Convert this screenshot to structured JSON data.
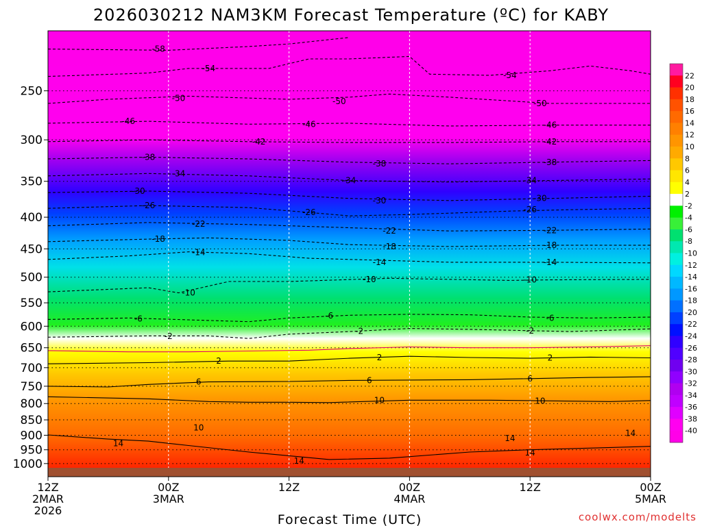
{
  "chart_data": {
    "type": "heatmap",
    "title": "2026030212 NAM3KM Forecast Temperature (ºC) for KABY",
    "xlabel": "Forecast Time (UTC)",
    "ylabel": "",
    "credit": "coolwx.com/modelts",
    "x_range_hours": [
      0,
      60
    ],
    "y_range_hpa": [
      1050,
      200
    ],
    "y_ticks": [
      250,
      300,
      350,
      400,
      450,
      500,
      550,
      600,
      650,
      700,
      750,
      800,
      850,
      900,
      950,
      1000
    ],
    "x_ticks": [
      {
        "hour": 0,
        "line1": "12Z",
        "line2": "2MAR",
        "line3": "2026"
      },
      {
        "hour": 12,
        "line1": "00Z",
        "line2": "3MAR",
        "line3": ""
      },
      {
        "hour": 24,
        "line1": "12Z",
        "line2": "",
        "line3": ""
      },
      {
        "hour": 36,
        "line1": "00Z",
        "line2": "4MAR",
        "line3": ""
      },
      {
        "hour": 48,
        "line1": "12Z",
        "line2": "",
        "line3": ""
      },
      {
        "hour": 60,
        "line1": "00Z",
        "line2": "5MAR",
        "line3": ""
      }
    ],
    "colorbar_levels": [
      "22",
      "20",
      "18",
      "16",
      "14",
      "12",
      "10",
      "8",
      "6",
      "4",
      "2",
      "-2",
      "-4",
      "-6",
      "-8",
      "-10",
      "-12",
      "-14",
      "-16",
      "-18",
      "-20",
      "-22",
      "-24",
      "-26",
      "-28",
      "-30",
      "-32",
      "-34",
      "-36",
      "-38",
      "-40"
    ],
    "colorbar_colors": [
      "#ff1aa0",
      "#ff0020",
      "#ff3000",
      "#ff5200",
      "#ff6a00",
      "#ff8000",
      "#ff9500",
      "#ffaa00",
      "#ffc800",
      "#ffe600",
      "#ffff00",
      "#ffffff",
      "#00f000",
      "#38f038",
      "#00e070",
      "#00e8b0",
      "#00f0e0",
      "#00d8ff",
      "#00b8ff",
      "#0098ff",
      "#0070ff",
      "#0040ff",
      "#0010ff",
      "#3000ff",
      "#5000ff",
      "#7000f0",
      "#9000ff",
      "#b000f0",
      "#c000ff",
      "#e000ff",
      "#ff00f0",
      "#ff00e8"
    ],
    "series": [
      {
        "name": "-58",
        "values": [
          [
            0,
            214
          ],
          [
            12,
            215
          ],
          [
            20,
            212
          ],
          [
            24,
            210
          ],
          [
            30,
            205
          ]
        ]
      },
      {
        "name": "-54",
        "values": [
          [
            0,
            237
          ],
          [
            10,
            234
          ],
          [
            14,
            230
          ],
          [
            22,
            230
          ],
          [
            26,
            222
          ],
          [
            30,
            222
          ],
          [
            36,
            220
          ],
          [
            38,
            235
          ],
          [
            44,
            236
          ],
          [
            50,
            232
          ],
          [
            54,
            228
          ],
          [
            58,
            232
          ],
          [
            60,
            235
          ]
        ]
      },
      {
        "name": "-50",
        "values": [
          [
            0,
            262
          ],
          [
            6,
            258
          ],
          [
            14,
            255
          ],
          [
            24,
            258
          ],
          [
            30,
            256
          ],
          [
            34,
            253
          ],
          [
            40,
            256
          ],
          [
            50,
            262
          ],
          [
            60,
            262
          ]
        ]
      },
      {
        "name": "-46",
        "values": [
          [
            0,
            282
          ],
          [
            10,
            280
          ],
          [
            20,
            283
          ],
          [
            30,
            282
          ],
          [
            40,
            285
          ],
          [
            50,
            284
          ],
          [
            60,
            284
          ]
        ]
      },
      {
        "name": "-42",
        "values": [
          [
            0,
            302
          ],
          [
            10,
            300
          ],
          [
            20,
            302
          ],
          [
            30,
            303
          ],
          [
            40,
            303
          ],
          [
            50,
            302
          ],
          [
            60,
            302
          ]
        ]
      },
      {
        "name": "-38",
        "values": [
          [
            0,
            322
          ],
          [
            10,
            320
          ],
          [
            20,
            322
          ],
          [
            30,
            326
          ],
          [
            40,
            328
          ],
          [
            50,
            326
          ],
          [
            60,
            324
          ]
        ]
      },
      {
        "name": "-34",
        "values": [
          [
            0,
            343
          ],
          [
            10,
            340
          ],
          [
            20,
            343
          ],
          [
            30,
            349
          ],
          [
            40,
            351
          ],
          [
            50,
            349
          ],
          [
            60,
            347
          ]
        ]
      },
      {
        "name": "-30",
        "values": [
          [
            0,
            365
          ],
          [
            10,
            363
          ],
          [
            20,
            366
          ],
          [
            30,
            373
          ],
          [
            40,
            376
          ],
          [
            50,
            373
          ],
          [
            60,
            370
          ]
        ]
      },
      {
        "name": "-26",
        "values": [
          [
            0,
            387
          ],
          [
            10,
            383
          ],
          [
            20,
            386
          ],
          [
            26,
            393
          ],
          [
            30,
            398
          ],
          [
            36,
            396
          ],
          [
            46,
            391
          ],
          [
            52,
            389
          ],
          [
            60,
            387
          ]
        ]
      },
      {
        "name": "-22",
        "values": [
          [
            0,
            413
          ],
          [
            10,
            408
          ],
          [
            20,
            411
          ],
          [
            30,
            416
          ],
          [
            40,
            421
          ],
          [
            50,
            420
          ],
          [
            60,
            418
          ]
        ]
      },
      {
        "name": "-18",
        "values": [
          [
            0,
            438
          ],
          [
            10,
            434
          ],
          [
            16,
            432
          ],
          [
            24,
            436
          ],
          [
            30,
            443
          ],
          [
            40,
            446
          ],
          [
            50,
            444
          ],
          [
            60,
            444
          ]
        ]
      },
      {
        "name": "-14",
        "values": [
          [
            0,
            468
          ],
          [
            8,
            462
          ],
          [
            14,
            455
          ],
          [
            20,
            458
          ],
          [
            26,
            466
          ],
          [
            34,
            470
          ],
          [
            40,
            473
          ],
          [
            50,
            473
          ],
          [
            60,
            474
          ]
        ]
      },
      {
        "name": "-10",
        "values": [
          [
            0,
            528
          ],
          [
            10,
            520
          ],
          [
            13,
            530
          ],
          [
            18,
            508
          ],
          [
            24,
            508
          ],
          [
            34,
            502
          ],
          [
            40,
            504
          ],
          [
            46,
            506
          ],
          [
            50,
            505
          ],
          [
            60,
            504
          ]
        ]
      },
      {
        "name": "-6",
        "values": [
          [
            0,
            585
          ],
          [
            8,
            582
          ],
          [
            14,
            586
          ],
          [
            20,
            590
          ],
          [
            24,
            582
          ],
          [
            30,
            576
          ],
          [
            36,
            574
          ],
          [
            42,
            575
          ],
          [
            48,
            580
          ],
          [
            54,
            582
          ],
          [
            60,
            580
          ]
        ]
      },
      {
        "name": "-2",
        "values": [
          [
            0,
            625
          ],
          [
            10,
            622
          ],
          [
            16,
            622
          ],
          [
            20,
            628
          ],
          [
            24,
            618
          ],
          [
            30,
            612
          ],
          [
            36,
            605
          ],
          [
            42,
            607
          ],
          [
            48,
            610
          ],
          [
            52,
            612
          ],
          [
            60,
            606
          ]
        ]
      },
      {
        "name": "0",
        "values": [
          [
            0,
            657
          ],
          [
            8,
            660
          ],
          [
            14,
            660
          ],
          [
            20,
            658
          ],
          [
            26,
            656
          ],
          [
            30,
            652
          ],
          [
            36,
            648
          ],
          [
            42,
            650
          ],
          [
            48,
            650
          ],
          [
            54,
            648
          ],
          [
            60,
            645
          ]
        ]
      },
      {
        "name": "2",
        "values": [
          [
            0,
            690
          ],
          [
            10,
            687
          ],
          [
            18,
            683
          ],
          [
            24,
            683
          ],
          [
            30,
            676
          ],
          [
            36,
            671
          ],
          [
            42,
            674
          ],
          [
            48,
            676
          ],
          [
            54,
            673
          ],
          [
            60,
            675
          ]
        ]
      },
      {
        "name": "6",
        "values": [
          [
            0,
            750
          ],
          [
            6,
            752
          ],
          [
            10,
            745
          ],
          [
            16,
            738
          ],
          [
            24,
            737
          ],
          [
            30,
            734
          ],
          [
            36,
            733
          ],
          [
            42,
            732
          ],
          [
            48,
            729
          ],
          [
            54,
            726
          ],
          [
            60,
            724
          ]
        ]
      },
      {
        "name": "10",
        "values": [
          [
            0,
            780
          ],
          [
            10,
            786
          ],
          [
            16,
            794
          ],
          [
            20,
            796
          ],
          [
            24,
            796
          ],
          [
            28,
            797
          ],
          [
            36,
            790
          ],
          [
            44,
            790
          ],
          [
            50,
            792
          ],
          [
            56,
            794
          ],
          [
            60,
            791
          ]
        ]
      },
      {
        "name": "14",
        "values": [
          [
            0,
            899
          ],
          [
            6,
            913
          ],
          [
            10,
            920
          ],
          [
            14,
            935
          ],
          [
            20,
            958
          ],
          [
            28,
            985
          ],
          [
            34,
            980
          ],
          [
            42,
            958
          ],
          [
            48,
            950
          ],
          [
            56,
            942
          ],
          [
            60,
            938
          ]
        ]
      }
    ],
    "contour_labels": [
      {
        "text": "-58",
        "hour": 11,
        "hpa": 214
      },
      {
        "text": "-54",
        "hour": 16,
        "hpa": 230
      },
      {
        "text": "-54",
        "hour": 46,
        "hpa": 236
      },
      {
        "text": "-50",
        "hour": 13,
        "hpa": 257
      },
      {
        "text": "-50",
        "hour": 29,
        "hpa": 260
      },
      {
        "text": "-50",
        "hour": 49,
        "hpa": 262
      },
      {
        "text": "-46",
        "hour": 8,
        "hpa": 280
      },
      {
        "text": "-46",
        "hour": 26,
        "hpa": 283
      },
      {
        "text": "-46",
        "hour": 50,
        "hpa": 284
      },
      {
        "text": "-42",
        "hour": 21,
        "hpa": 302
      },
      {
        "text": "-42",
        "hour": 50,
        "hpa": 302
      },
      {
        "text": "-38",
        "hour": 10,
        "hpa": 320
      },
      {
        "text": "-38",
        "hour": 33,
        "hpa": 328
      },
      {
        "text": "-38",
        "hour": 50,
        "hpa": 326
      },
      {
        "text": "-34",
        "hour": 13,
        "hpa": 340
      },
      {
        "text": "-34",
        "hour": 30,
        "hpa": 349
      },
      {
        "text": "-34",
        "hour": 48,
        "hpa": 349
      },
      {
        "text": "-30",
        "hour": 9,
        "hpa": 363
      },
      {
        "text": "-30",
        "hour": 33,
        "hpa": 376
      },
      {
        "text": "-30",
        "hour": 49,
        "hpa": 373
      },
      {
        "text": "-26",
        "hour": 10,
        "hpa": 383
      },
      {
        "text": "-26",
        "hour": 26,
        "hpa": 393
      },
      {
        "text": "-26",
        "hour": 48,
        "hpa": 389
      },
      {
        "text": "-22",
        "hour": 15,
        "hpa": 410
      },
      {
        "text": "-22",
        "hour": 34,
        "hpa": 421
      },
      {
        "text": "-22",
        "hour": 50,
        "hpa": 420
      },
      {
        "text": "-18",
        "hour": 11,
        "hpa": 434
      },
      {
        "text": "-18",
        "hour": 34,
        "hpa": 446
      },
      {
        "text": "-18",
        "hour": 50,
        "hpa": 444
      },
      {
        "text": "-14",
        "hour": 15,
        "hpa": 456
      },
      {
        "text": "-14",
        "hour": 33,
        "hpa": 473
      },
      {
        "text": "-14",
        "hour": 50,
        "hpa": 473
      },
      {
        "text": "-10",
        "hour": 14,
        "hpa": 530
      },
      {
        "text": "-10",
        "hour": 32,
        "hpa": 504
      },
      {
        "text": "-10",
        "hour": 48,
        "hpa": 505
      },
      {
        "text": "-6",
        "hour": 9,
        "hpa": 584
      },
      {
        "text": "-6",
        "hour": 28,
        "hpa": 577
      },
      {
        "text": "-6",
        "hour": 50,
        "hpa": 582
      },
      {
        "text": "-2",
        "hour": 12,
        "hpa": 623
      },
      {
        "text": "-2",
        "hour": 31,
        "hpa": 611
      },
      {
        "text": "-2",
        "hour": 48,
        "hpa": 610
      },
      {
        "text": "2",
        "hour": 17,
        "hpa": 683
      },
      {
        "text": "2",
        "hour": 33,
        "hpa": 674
      },
      {
        "text": "2",
        "hour": 50,
        "hpa": 675
      },
      {
        "text": "6",
        "hour": 15,
        "hpa": 738
      },
      {
        "text": "6",
        "hour": 32,
        "hpa": 734
      },
      {
        "text": "6",
        "hour": 48,
        "hpa": 729
      },
      {
        "text": "10",
        "hour": 15,
        "hpa": 875
      },
      {
        "text": "10",
        "hour": 33,
        "hpa": 790
      },
      {
        "text": "10",
        "hour": 49,
        "hpa": 792
      },
      {
        "text": "14",
        "hour": 7,
        "hpa": 928
      },
      {
        "text": "14",
        "hour": 25,
        "hpa": 990
      },
      {
        "text": "14",
        "hour": 46,
        "hpa": 910
      },
      {
        "text": "14",
        "hour": 48,
        "hpa": 960
      },
      {
        "text": "14",
        "hour": 58,
        "hpa": 893
      }
    ]
  }
}
